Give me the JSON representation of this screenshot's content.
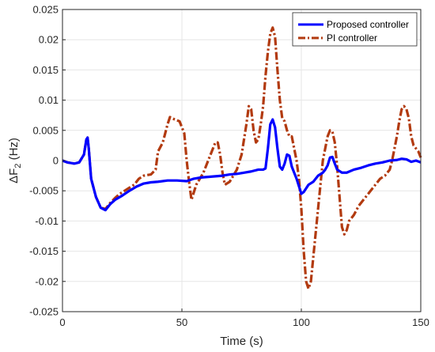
{
  "chart_data": {
    "type": "line",
    "xlabel": "Time (s)",
    "ylabel_main": "ΔF",
    "ylabel_sub": "2",
    "ylabel_unit": " (Hz)",
    "xlim": [
      0,
      150
    ],
    "ylim": [
      -0.025,
      0.025
    ],
    "x_ticks": [
      0,
      50,
      100,
      150
    ],
    "x_tick_labels": [
      "0",
      "50",
      "100",
      "150"
    ],
    "y_ticks": [
      -0.025,
      -0.02,
      -0.015,
      -0.01,
      -0.005,
      0,
      0.005,
      0.01,
      0.015,
      0.02,
      0.025
    ],
    "y_tick_labels": [
      "-0.025",
      "-0.02",
      "-0.015",
      "-0.01",
      "-0.005",
      "0",
      "0.005",
      "0.01",
      "0.015",
      "0.02",
      "0.025"
    ],
    "grid": true,
    "legend_position": "top-right",
    "series": [
      {
        "name": "Proposed controller",
        "color": "#0000ff",
        "style": "solid",
        "points": [
          [
            0,
            0
          ],
          [
            2,
            -0.0003
          ],
          [
            5,
            -0.0005
          ],
          [
            7,
            -0.0003
          ],
          [
            9,
            0.001
          ],
          [
            10,
            0.0035
          ],
          [
            10.5,
            0.0038
          ],
          [
            11,
            0.002
          ],
          [
            12,
            -0.003
          ],
          [
            14,
            -0.006
          ],
          [
            16,
            -0.0078
          ],
          [
            18,
            -0.0082
          ],
          [
            20,
            -0.0072
          ],
          [
            22,
            -0.0065
          ],
          [
            25,
            -0.0058
          ],
          [
            28,
            -0.005
          ],
          [
            31,
            -0.0043
          ],
          [
            34,
            -0.0038
          ],
          [
            37,
            -0.0036
          ],
          [
            40,
            -0.0035
          ],
          [
            44,
            -0.0033
          ],
          [
            48,
            -0.0033
          ],
          [
            52,
            -0.0034
          ],
          [
            55,
            -0.003
          ],
          [
            58,
            -0.0028
          ],
          [
            61,
            -0.0027
          ],
          [
            64,
            -0.0026
          ],
          [
            67,
            -0.0025
          ],
          [
            70,
            -0.0023
          ],
          [
            73,
            -0.0022
          ],
          [
            76,
            -0.002
          ],
          [
            79,
            -0.0018
          ],
          [
            82,
            -0.0015
          ],
          [
            84,
            -0.0015
          ],
          [
            85,
            -0.0013
          ],
          [
            86,
            0.002
          ],
          [
            87,
            0.006
          ],
          [
            88,
            0.0068
          ],
          [
            89,
            0.0055
          ],
          [
            90,
            0.002
          ],
          [
            91,
            -0.001
          ],
          [
            92,
            -0.0015
          ],
          [
            93,
            -0.0005
          ],
          [
            94,
            0.001
          ],
          [
            95,
            0.0008
          ],
          [
            96,
            -0.001
          ],
          [
            97,
            -0.002
          ],
          [
            98,
            -0.003
          ],
          [
            100,
            -0.0055
          ],
          [
            101,
            -0.0052
          ],
          [
            103,
            -0.004
          ],
          [
            105,
            -0.0035
          ],
          [
            107,
            -0.0025
          ],
          [
            109,
            -0.002
          ],
          [
            110,
            -0.0015
          ],
          [
            111,
            -0.0008
          ],
          [
            112,
            0.0005
          ],
          [
            113,
            0.0006
          ],
          [
            114,
            -0.0005
          ],
          [
            115,
            -0.0015
          ],
          [
            117,
            -0.002
          ],
          [
            119,
            -0.002
          ],
          [
            122,
            -0.0015
          ],
          [
            125,
            -0.0012
          ],
          [
            128,
            -0.0008
          ],
          [
            131,
            -0.0005
          ],
          [
            134,
            -0.0003
          ],
          [
            137,
            0
          ],
          [
            140,
            0.0001
          ],
          [
            142,
            0.0003
          ],
          [
            144,
            0.0002
          ],
          [
            146,
            -0.0002
          ],
          [
            148,
            0
          ],
          [
            150,
            -0.0003
          ]
        ]
      },
      {
        "name": "PI controller",
        "color": "#b23a0f",
        "style": "dash-dot",
        "points": [
          [
            0,
            0
          ],
          [
            2,
            -0.0003
          ],
          [
            5,
            -0.0005
          ],
          [
            7,
            -0.0003
          ],
          [
            9,
            0.001
          ],
          [
            10,
            0.0035
          ],
          [
            10.5,
            0.0038
          ],
          [
            11,
            0.002
          ],
          [
            12,
            -0.003
          ],
          [
            14,
            -0.006
          ],
          [
            16,
            -0.0078
          ],
          [
            18,
            -0.008
          ],
          [
            20,
            -0.007
          ],
          [
            22,
            -0.0062
          ],
          [
            24,
            -0.0055
          ],
          [
            26,
            -0.005
          ],
          [
            28,
            -0.0045
          ],
          [
            30,
            -0.004
          ],
          [
            32,
            -0.003
          ],
          [
            34,
            -0.0025
          ],
          [
            37,
            -0.0023
          ],
          [
            39,
            -0.0015
          ],
          [
            40,
            0.0015
          ],
          [
            42,
            0.003
          ],
          [
            44,
            0.006
          ],
          [
            45,
            0.0072
          ],
          [
            47,
            0.0068
          ],
          [
            49,
            0.0065
          ],
          [
            51,
            0.0045
          ],
          [
            52,
            0.0
          ],
          [
            53,
            -0.0035
          ],
          [
            54,
            -0.0065
          ],
          [
            56,
            -0.004
          ],
          [
            59,
            -0.002
          ],
          [
            62,
            0.001
          ],
          [
            64,
            0.003
          ],
          [
            65,
            0.003
          ],
          [
            66,
            0.001
          ],
          [
            67,
            -0.002
          ],
          [
            68,
            -0.004
          ],
          [
            70,
            -0.0035
          ],
          [
            73,
            -0.0015
          ],
          [
            75,
            0.001
          ],
          [
            77,
            0.006
          ],
          [
            78,
            0.009
          ],
          [
            79,
            0.0085
          ],
          [
            80,
            0.005
          ],
          [
            81,
            0.003
          ],
          [
            82,
            0.0035
          ],
          [
            83,
            0.006
          ],
          [
            84,
            0.009
          ],
          [
            85,
            0.014
          ],
          [
            86,
            0.018
          ],
          [
            87,
            0.021
          ],
          [
            88,
            0.022
          ],
          [
            89,
            0.0205
          ],
          [
            90,
            0.015
          ],
          [
            91,
            0.01
          ],
          [
            92,
            0.007
          ],
          [
            93,
            0.0065
          ],
          [
            94,
            0.005
          ],
          [
            95,
            0.004
          ],
          [
            96,
            0.004
          ],
          [
            97,
            0.002
          ],
          [
            98,
            0.0
          ],
          [
            99,
            -0.003
          ],
          [
            100,
            -0.008
          ],
          [
            101,
            -0.015
          ],
          [
            102,
            -0.02
          ],
          [
            103,
            -0.0212
          ],
          [
            104,
            -0.02
          ],
          [
            105,
            -0.016
          ],
          [
            106,
            -0.012
          ],
          [
            107,
            -0.008
          ],
          [
            108,
            -0.004
          ],
          [
            109,
            0.0
          ],
          [
            110,
            0.002
          ],
          [
            111,
            0.004
          ],
          [
            112,
            0.005
          ],
          [
            113,
            0.0048
          ],
          [
            114,
            0.003
          ],
          [
            115,
            -0.001
          ],
          [
            116,
            -0.006
          ],
          [
            117,
            -0.011
          ],
          [
            118,
            -0.0122
          ],
          [
            119,
            -0.0115
          ],
          [
            120,
            -0.01
          ],
          [
            122,
            -0.009
          ],
          [
            124,
            -0.0075
          ],
          [
            127,
            -0.006
          ],
          [
            130,
            -0.0045
          ],
          [
            133,
            -0.003
          ],
          [
            135,
            -0.0025
          ],
          [
            137,
            -0.0015
          ],
          [
            138,
            0.0
          ],
          [
            139,
            0.002
          ],
          [
            140,
            0.004
          ],
          [
            141,
            0.0065
          ],
          [
            142,
            0.0085
          ],
          [
            143,
            0.009
          ],
          [
            144,
            0.0085
          ],
          [
            145,
            0.007
          ],
          [
            146,
            0.004
          ],
          [
            147,
            0.0025
          ],
          [
            148,
            0.002
          ],
          [
            149,
            0.0015
          ],
          [
            150,
            0.0005
          ]
        ]
      }
    ]
  }
}
